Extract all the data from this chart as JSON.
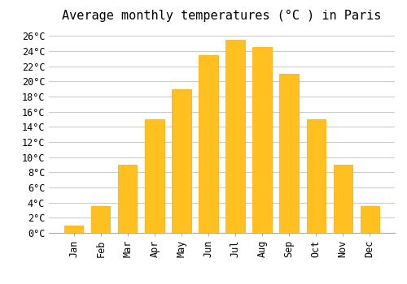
{
  "months": [
    "Jan",
    "Feb",
    "Mar",
    "Apr",
    "May",
    "Jun",
    "Jul",
    "Aug",
    "Sep",
    "Oct",
    "Nov",
    "Dec"
  ],
  "values": [
    1.0,
    3.5,
    9.0,
    15.0,
    19.0,
    23.5,
    25.5,
    24.5,
    21.0,
    15.0,
    9.0,
    3.5
  ],
  "bar_color": "#FFC020",
  "bar_edge_color": "#FFA500",
  "title": "Average monthly temperatures (°C ) in Paris",
  "title_fontsize": 11,
  "ylim": [
    0,
    27
  ],
  "yticks": [
    0,
    2,
    4,
    6,
    8,
    10,
    12,
    14,
    16,
    18,
    20,
    22,
    24,
    26
  ],
  "grid_color": "#cccccc",
  "background_color": "#ffffff",
  "tick_label_fontsize": 8.5,
  "font_family": "monospace"
}
